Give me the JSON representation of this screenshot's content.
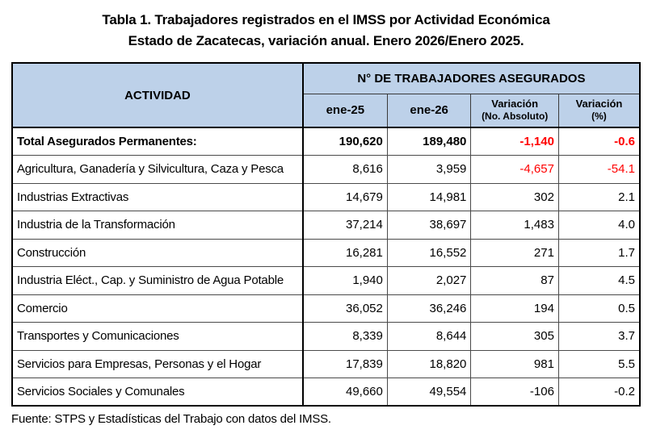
{
  "title": {
    "line1": "Tabla 1. Trabajadores registrados en el IMSS por Actividad Económica",
    "line2": "Estado de Zacatecas, variación anual. Enero 2026/Enero 2025."
  },
  "table": {
    "activity_header": "ACTIVIDAD",
    "group_header": "N° DE TRABAJADORES ASEGURADOS",
    "col_ene25": "ene-25",
    "col_ene26": "ene-26",
    "col_var_abs_line1": "Variación",
    "col_var_abs_line2": "(No. Absoluto)",
    "col_var_pct_line1": "Variación",
    "col_var_pct_line2": "(%)",
    "rows": [
      {
        "activity": "Total Asegurados Permanentes:",
        "ene25": "190,620",
        "ene26": "189,480",
        "var_abs": "-1,140",
        "var_pct": "-0.6"
      },
      {
        "activity": "Agricultura, Ganadería y Silvicultura, Caza y Pesca",
        "ene25": "8,616",
        "ene26": "3,959",
        "var_abs": "-4,657",
        "var_pct": "-54.1"
      },
      {
        "activity": "Industrias Extractivas",
        "ene25": "14,679",
        "ene26": "14,981",
        "var_abs": "302",
        "var_pct": "2.1"
      },
      {
        "activity": "Industria de la Transformación",
        "ene25": "37,214",
        "ene26": "38,697",
        "var_abs": "1,483",
        "var_pct": "4.0"
      },
      {
        "activity": "Construcción",
        "ene25": "16,281",
        "ene26": "16,552",
        "var_abs": "271",
        "var_pct": "1.7"
      },
      {
        "activity": "Industria Eléct., Cap. y Suministro de Agua Potable",
        "ene25": "1,940",
        "ene26": "2,027",
        "var_abs": "87",
        "var_pct": "4.5"
      },
      {
        "activity": "Comercio",
        "ene25": "36,052",
        "ene26": "36,246",
        "var_abs": "194",
        "var_pct": "0.5"
      },
      {
        "activity": "Transportes y Comunicaciones",
        "ene25": "8,339",
        "ene26": "8,644",
        "var_abs": "305",
        "var_pct": "3.7"
      },
      {
        "activity": "Servicios para Empresas, Personas y el Hogar",
        "ene25": "17,839",
        "ene26": "18,820",
        "var_abs": "981",
        "var_pct": "5.5"
      },
      {
        "activity": "Servicios Sociales y Comunales",
        "ene25": "49,660",
        "ene26": "49,554",
        "var_abs": "-106",
        "var_pct": "-0.2"
      }
    ]
  },
  "footer": {
    "source": "Fuente: STPS y Estadísticas del Trabajo con datos del IMSS."
  },
  "colors": {
    "header_fill": "#BDD1E9",
    "negative_value": "#FF0000",
    "border": "#000000"
  },
  "chart_data": {
    "type": "table",
    "title": "Tabla 1. Trabajadores registrados en el IMSS por Actividad Económica — Estado de Zacatecas, variación anual. Enero 2026/Enero 2025.",
    "columns": [
      "ACTIVIDAD",
      "ene-25",
      "ene-26",
      "Variación (No. Absoluto)",
      "Variación (%)"
    ],
    "rows": [
      [
        "Total Asegurados Permanentes:",
        190620,
        189480,
        -1140,
        -0.6
      ],
      [
        "Agricultura, Ganadería y Silvicultura, Caza y Pesca",
        8616,
        3959,
        -4657,
        -54.1
      ],
      [
        "Industrias Extractivas",
        14679,
        14981,
        302,
        2.1
      ],
      [
        "Industria de la Transformación",
        37214,
        38697,
        1483,
        4.0
      ],
      [
        "Construcción",
        16281,
        16552,
        271,
        1.7
      ],
      [
        "Industria Eléct., Cap. y Suministro de Agua Potable",
        1940,
        2027,
        87,
        4.5
      ],
      [
        "Comercio",
        36052,
        36246,
        194,
        0.5
      ],
      [
        "Transportes y Comunicaciones",
        8339,
        8644,
        305,
        3.7
      ],
      [
        "Servicios para Empresas, Personas y el Hogar",
        17839,
        18820,
        981,
        5.5
      ],
      [
        "Servicios Sociales y Comunales",
        49660,
        49554,
        -106,
        -0.2
      ]
    ],
    "source": "Fuente: STPS y Estadísticas del Trabajo con datos del IMSS."
  }
}
